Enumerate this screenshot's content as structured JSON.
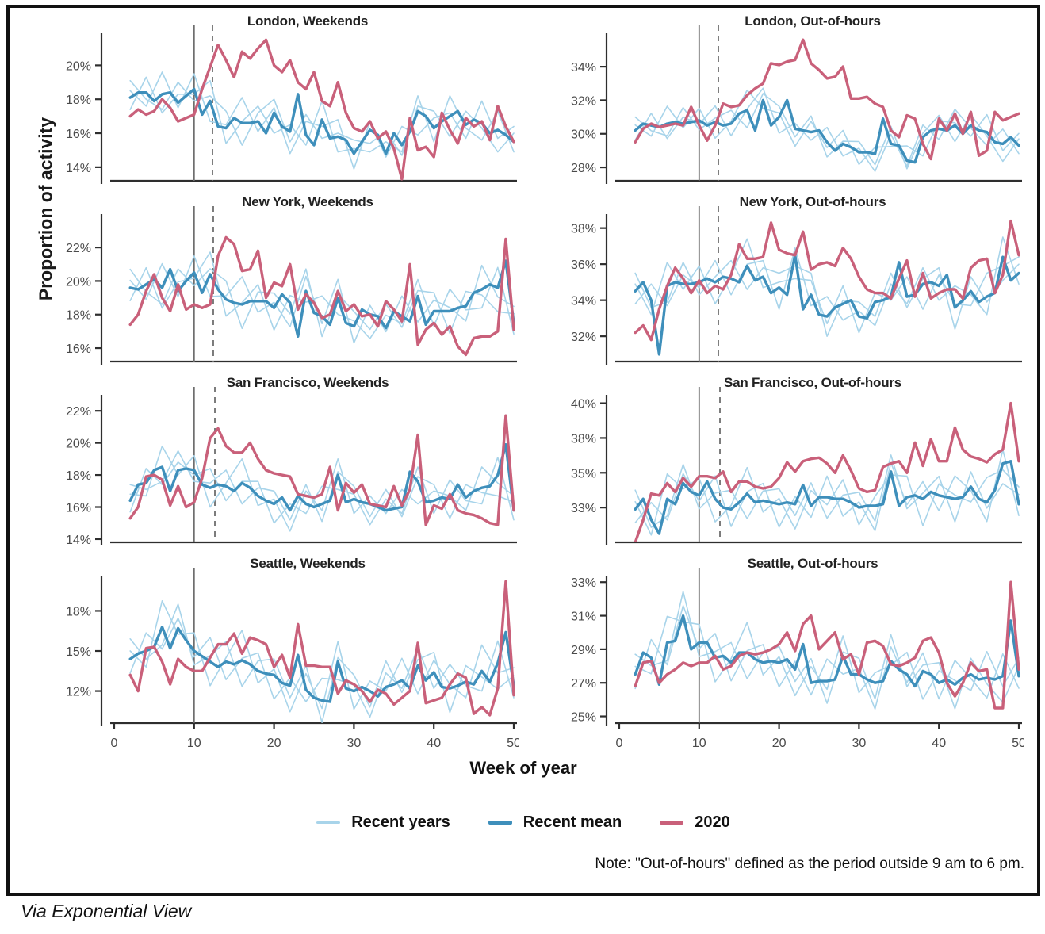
{
  "figure": {
    "y_axis_label": "Proportion of activity",
    "x_axis_label": "Week of year",
    "note": "Note: \"Out-of-hours\" defined as the period outside 9 am to 6 pm.",
    "attribution": "Via Exponential View",
    "legend": [
      {
        "label": "Recent years",
        "color": "#a8d4ea",
        "thickness": 3
      },
      {
        "label": "Recent mean",
        "color": "#3e8fbb",
        "thickness": 5
      },
      {
        "label": "2020",
        "color": "#c9607a",
        "thickness": 5
      }
    ]
  },
  "chart_data": {
    "type": "line",
    "xlabel": "Week of year",
    "ylabel": "Proportion of activity",
    "xlim": [
      0,
      50
    ],
    "xticks": [
      0,
      10,
      20,
      30,
      40,
      50
    ],
    "vline_solid_week": 10,
    "colors": {
      "recent": "#a8d4ea",
      "mean": "#3e8fbb",
      "y2020": "#c9607a",
      "vline": "#6e6e6e"
    },
    "x_weeks": [
      2,
      3,
      4,
      5,
      6,
      7,
      8,
      9,
      10,
      11,
      12,
      13,
      14,
      15,
      16,
      17,
      18,
      19,
      20,
      21,
      22,
      23,
      24,
      25,
      26,
      27,
      28,
      29,
      30,
      31,
      32,
      33,
      34,
      35,
      36,
      37,
      38,
      39,
      40,
      41,
      42,
      43,
      44,
      45,
      46,
      47,
      48,
      49,
      50
    ],
    "x_weeks_even": [
      2,
      4,
      6,
      8,
      10,
      12,
      14,
      16,
      18,
      20,
      22,
      24,
      26,
      28,
      30,
      32,
      34,
      36,
      38,
      40,
      42,
      44,
      46,
      48,
      50
    ],
    "recent_years_offsets": [
      [
        0.4,
        -0.8,
        1.3,
        -0.3,
        0.9,
        -1.2,
        0.2,
        1.5,
        -0.6,
        0.3,
        -1.3,
        0.8,
        -0.4,
        1.0,
        -0.9,
        0.5,
        -0.2,
        1.1,
        -1.4,
        0.6,
        0.2,
        -0.8,
        1.3,
        -0.5,
        0.9
      ],
      [
        -0.7,
        0.9,
        -1.1,
        0.5,
        -0.3,
        1.2,
        -0.9,
        0.1,
        0.9,
        -1.2,
        0.4,
        -0.6,
        1.1,
        -0.9,
        0.3,
        -1.3,
        0.7,
        -0.4,
        0.9,
        -0.8,
        1.2,
        -0.2,
        -1.0,
        1.1,
        -0.6
      ],
      [
        1.0,
        -0.4,
        -0.9,
        1.2,
        -0.7,
        0.3,
        1.0,
        -1.3,
        0.5,
        0.8,
        -0.6,
        1.2,
        -1.1,
        0.2,
        0.8,
        -0.8,
        1.3,
        -0.6,
        0.3,
        1.0,
        -1.2,
        0.8,
        -0.3,
        -1.3,
        0.5
      ]
    ],
    "panels": [
      {
        "id": "london-weekends",
        "title": "London, Weekends",
        "yticks": [
          14,
          16,
          18,
          20
        ],
        "ylim": [
          13.2,
          21.7
        ],
        "vline_dashed_week": 12.3,
        "recent_amp": 1.0,
        "mean": [
          18.1,
          18.4,
          18.4,
          17.9,
          18.3,
          18.4,
          17.8,
          18.2,
          18.6,
          17.1,
          17.9,
          16.4,
          16.3,
          16.9,
          16.6,
          16.6,
          16.7,
          16.0,
          17.2,
          16.4,
          16.1,
          18.3,
          15.9,
          15.3,
          16.8,
          15.7,
          15.8,
          15.6,
          14.8,
          15.5,
          16.2,
          15.9,
          14.8,
          16.0,
          15.3,
          16.1,
          17.3,
          17.0,
          16.3,
          16.7,
          17.0,
          17.3,
          16.5,
          16.8,
          16.6,
          16.0,
          16.2,
          15.9,
          15.5
        ],
        "y2020": [
          17.0,
          17.4,
          17.1,
          17.3,
          18.0,
          17.5,
          16.7,
          16.9,
          17.1,
          18.6,
          19.9,
          21.2,
          20.3,
          19.3,
          20.8,
          20.4,
          21.0,
          21.5,
          20.0,
          19.6,
          20.3,
          19.0,
          18.6,
          19.6,
          17.9,
          17.6,
          19.0,
          17.2,
          16.3,
          16.1,
          16.7,
          15.7,
          16.1,
          15.1,
          13.3,
          16.9,
          15.0,
          15.2,
          14.6,
          17.2,
          16.2,
          15.4,
          16.9,
          16.4,
          16.7,
          15.6,
          17.6,
          16.4,
          15.5
        ]
      },
      {
        "id": "london-out-of-hours",
        "title": "London, Out-of-hours",
        "yticks": [
          28,
          30,
          32,
          34
        ],
        "ylim": [
          27.2,
          35.8
        ],
        "vline_dashed_week": 12.4,
        "recent_amp": 0.8,
        "mean": [
          30.2,
          30.6,
          30.5,
          30.4,
          30.6,
          30.7,
          30.6,
          30.7,
          30.8,
          30.5,
          30.7,
          30.5,
          30.6,
          31.2,
          31.4,
          30.2,
          32.0,
          30.5,
          31.0,
          32.0,
          30.3,
          30.2,
          30.1,
          30.2,
          29.5,
          29.0,
          29.4,
          29.2,
          28.9,
          28.9,
          28.8,
          30.9,
          29.4,
          29.3,
          28.4,
          28.3,
          29.8,
          30.2,
          30.3,
          30.2,
          30.5,
          30.0,
          30.5,
          30.2,
          30.1,
          29.5,
          29.4,
          29.8,
          29.3
        ],
        "y2020": [
          29.5,
          30.3,
          30.6,
          30.4,
          30.5,
          30.6,
          30.5,
          31.6,
          30.5,
          29.6,
          30.5,
          31.8,
          31.6,
          31.7,
          32.3,
          32.7,
          33.0,
          34.2,
          34.1,
          34.3,
          34.4,
          35.6,
          34.2,
          33.8,
          33.3,
          33.4,
          34.0,
          32.1,
          32.1,
          32.2,
          31.8,
          31.6,
          30.2,
          29.8,
          31.1,
          30.9,
          29.4,
          28.5,
          30.9,
          30.2,
          31.2,
          30.0,
          31.3,
          28.7,
          29.0,
          31.3,
          30.8,
          31.0,
          31.2
        ]
      },
      {
        "id": "new-york-weekends",
        "title": "New York, Weekends",
        "yticks": [
          16,
          18,
          20,
          22
        ],
        "ylim": [
          15.2,
          23.8
        ],
        "vline_dashed_week": 12.4,
        "recent_amp": 1.1,
        "mean": [
          19.6,
          19.5,
          19.8,
          20.1,
          19.6,
          20.7,
          19.4,
          20.0,
          20.5,
          19.3,
          20.4,
          19.5,
          18.9,
          18.7,
          18.6,
          18.8,
          18.8,
          18.8,
          18.4,
          19.2,
          18.7,
          16.7,
          19.4,
          18.1,
          17.9,
          17.4,
          19.0,
          17.5,
          17.3,
          18.3,
          18.0,
          17.9,
          17.2,
          18.2,
          17.9,
          17.6,
          19.1,
          17.4,
          18.2,
          18.2,
          18.2,
          18.4,
          18.5,
          19.3,
          19.5,
          19.8,
          19.6,
          21.2,
          17.5
        ],
        "y2020": [
          17.4,
          18.0,
          19.4,
          20.4,
          19.0,
          18.2,
          19.8,
          18.3,
          18.6,
          18.4,
          18.6,
          21.5,
          22.6,
          22.2,
          20.6,
          20.7,
          21.8,
          19.0,
          19.9,
          19.7,
          21.0,
          18.3,
          19.2,
          18.7,
          17.8,
          18.0,
          19.4,
          18.2,
          18.6,
          17.9,
          18.0,
          17.3,
          18.8,
          18.3,
          17.6,
          21.0,
          16.2,
          17.1,
          17.5,
          16.8,
          17.3,
          16.1,
          15.6,
          16.6,
          16.7,
          16.7,
          17.0,
          22.5,
          17.1
        ]
      },
      {
        "id": "new-york-out-of-hours",
        "title": "New York, Out-of-hours",
        "yticks": [
          32,
          34,
          36,
          38
        ],
        "ylim": [
          30.6,
          38.6
        ],
        "vline_dashed_week": 12.4,
        "recent_amp": 1.0,
        "mean": [
          34.5,
          35.0,
          34.0,
          31.0,
          34.8,
          35.0,
          34.9,
          34.9,
          35.0,
          35.2,
          35.0,
          35.3,
          35.2,
          35.0,
          35.9,
          35.1,
          35.3,
          34.4,
          34.7,
          34.3,
          36.5,
          33.5,
          34.3,
          33.2,
          33.1,
          33.6,
          33.8,
          34.0,
          33.1,
          33.0,
          33.9,
          34.0,
          34.2,
          36.1,
          34.2,
          34.3,
          34.9,
          35.0,
          34.8,
          35.4,
          33.6,
          34.0,
          34.5,
          33.9,
          34.2,
          34.4,
          36.4,
          35.1,
          35.5
        ],
        "y2020": [
          32.2,
          32.6,
          31.8,
          33.5,
          34.8,
          35.8,
          35.2,
          34.4,
          35.1,
          34.4,
          34.8,
          34.6,
          35.4,
          37.1,
          36.3,
          36.3,
          36.4,
          38.3,
          36.8,
          36.6,
          36.5,
          37.8,
          35.7,
          36.0,
          36.1,
          35.9,
          36.9,
          36.3,
          35.3,
          34.6,
          34.4,
          34.4,
          34.1,
          35.2,
          36.2,
          34.2,
          35.5,
          34.1,
          34.4,
          34.6,
          34.6,
          34.1,
          35.8,
          36.2,
          36.3,
          34.4,
          35.4,
          38.4,
          36.5
        ]
      },
      {
        "id": "san-francisco-weekends",
        "title": "San Francisco, Weekends",
        "yticks": [
          14,
          16,
          18,
          20,
          22
        ],
        "ylim": [
          13.8,
          22.8
        ],
        "vline_dashed_week": 12.6,
        "recent_amp": 1.0,
        "mean": [
          16.4,
          17.4,
          17.5,
          18.3,
          18.5,
          17.0,
          18.3,
          18.4,
          18.3,
          17.4,
          17.2,
          17.4,
          17.3,
          17.0,
          17.5,
          17.2,
          16.7,
          16.4,
          16.2,
          16.6,
          15.8,
          16.7,
          16.2,
          16.0,
          16.2,
          16.4,
          18.0,
          16.3,
          16.5,
          16.3,
          16.2,
          16.0,
          15.8,
          15.9,
          16.0,
          18.2,
          17.6,
          16.3,
          16.4,
          16.6,
          16.5,
          17.4,
          16.6,
          17.0,
          17.2,
          17.3,
          18.0,
          19.9,
          15.8
        ],
        "y2020": [
          15.3,
          16.0,
          17.9,
          18.0,
          17.7,
          16.1,
          17.3,
          16.0,
          16.3,
          17.8,
          20.3,
          20.9,
          19.8,
          19.4,
          19.4,
          20.0,
          19.0,
          18.3,
          18.1,
          18.0,
          17.9,
          16.8,
          16.7,
          16.6,
          16.8,
          18.5,
          15.8,
          17.5,
          16.9,
          17.4,
          16.2,
          16.1,
          16.0,
          17.3,
          16.1,
          17.1,
          20.5,
          14.9,
          16.1,
          15.9,
          16.8,
          15.8,
          15.6,
          15.5,
          15.3,
          15.0,
          14.9,
          21.7,
          15.8
        ]
      },
      {
        "id": "san-francisco-out-of-hours",
        "title": "San Francisco, Out-of-hours",
        "yticks": [
          33,
          35,
          38,
          40
        ],
        "ylim": [
          31.0,
          40.3
        ],
        "vline_dashed_week": 12.6,
        "recent_amp": 1.1,
        "mean": [
          32.9,
          33.5,
          32.3,
          31.5,
          33.5,
          33.2,
          34.4,
          33.9,
          33.7,
          34.5,
          33.5,
          33.0,
          32.9,
          33.3,
          33.8,
          33.3,
          33.4,
          33.3,
          33.2,
          33.3,
          33.2,
          34.3,
          33.1,
          33.6,
          33.6,
          33.5,
          33.5,
          33.3,
          33.0,
          33.1,
          33.1,
          33.2,
          35.1,
          33.1,
          33.6,
          33.7,
          33.5,
          33.9,
          33.7,
          33.6,
          33.5,
          33.6,
          34.2,
          33.5,
          33.3,
          34.0,
          35.8,
          36.0,
          33.2
        ],
        "y2020": [
          31.0,
          32.3,
          33.8,
          33.7,
          34.4,
          33.9,
          34.7,
          34.2,
          34.8,
          34.8,
          34.7,
          35.1,
          33.9,
          34.5,
          34.5,
          34.2,
          34.1,
          34.2,
          34.7,
          35.9,
          35.1,
          36.0,
          36.2,
          36.3,
          35.8,
          35.0,
          36.5,
          35.2,
          34.1,
          33.9,
          34.0,
          35.5,
          35.8,
          36.0,
          35.0,
          37.6,
          35.6,
          37.9,
          36.0,
          36.0,
          38.6,
          37.0,
          36.4,
          36.2,
          35.9,
          36.6,
          37.0,
          40.0,
          36.0
        ]
      },
      {
        "id": "seattle-weekends",
        "title": "Seattle, Weekends",
        "yticks": [
          12,
          15,
          18
        ],
        "ylim": [
          9.6,
          20.4
        ],
        "vline_dashed_week": null,
        "recent_amp": 1.5,
        "mean": [
          14.4,
          14.8,
          15.0,
          15.3,
          16.8,
          15.2,
          16.7,
          15.8,
          15.0,
          14.6,
          14.2,
          13.8,
          14.2,
          14.0,
          14.3,
          14.0,
          13.5,
          13.3,
          13.2,
          12.6,
          12.4,
          14.7,
          12.1,
          11.5,
          11.3,
          11.2,
          14.2,
          12.2,
          12.0,
          12.3,
          12.0,
          11.6,
          12.3,
          12.5,
          12.8,
          12.2,
          13.9,
          12.8,
          13.4,
          12.3,
          12.2,
          12.4,
          12.7,
          12.5,
          13.5,
          12.7,
          14.1,
          16.4,
          12.4
        ],
        "y2020": [
          13.2,
          12.0,
          15.2,
          15.3,
          14.2,
          12.5,
          14.4,
          13.8,
          13.5,
          13.5,
          14.5,
          15.5,
          15.5,
          16.3,
          14.8,
          16.0,
          15.8,
          15.5,
          13.8,
          14.7,
          13.0,
          17.0,
          13.9,
          13.9,
          13.8,
          13.8,
          11.8,
          12.8,
          12.5,
          12.0,
          11.2,
          12.1,
          11.8,
          11.0,
          11.5,
          12.0,
          15.6,
          11.1,
          11.3,
          11.5,
          12.5,
          13.3,
          13.0,
          10.3,
          10.8,
          10.2,
          12.2,
          20.2,
          11.7
        ]
      },
      {
        "id": "seattle-out-of-hours",
        "title": "Seattle, Out-of-hours",
        "yticks": [
          25,
          27,
          29,
          31,
          33
        ],
        "ylim": [
          24.6,
          33.2
        ],
        "vline_dashed_week": null,
        "recent_amp": 1.2,
        "mean": [
          27.5,
          28.8,
          28.5,
          26.9,
          29.4,
          29.5,
          31.0,
          29.0,
          29.4,
          29.4,
          28.5,
          28.6,
          28.2,
          28.8,
          28.8,
          28.4,
          28.2,
          28.3,
          28.2,
          28.4,
          27.8,
          29.3,
          27.0,
          27.1,
          27.1,
          27.2,
          28.6,
          27.5,
          27.5,
          27.2,
          27.0,
          27.1,
          28.3,
          27.8,
          27.5,
          26.8,
          27.7,
          27.5,
          27.0,
          27.2,
          26.9,
          27.3,
          27.5,
          27.2,
          27.3,
          27.2,
          27.4,
          30.7,
          27.4
        ],
        "y2020": [
          26.8,
          28.2,
          28.3,
          27.0,
          27.5,
          27.8,
          28.2,
          28.0,
          28.2,
          28.2,
          28.6,
          27.8,
          28.0,
          28.6,
          28.8,
          28.7,
          28.8,
          29.0,
          29.3,
          30.0,
          28.9,
          30.5,
          31.0,
          29.0,
          29.5,
          30.0,
          28.4,
          28.7,
          27.5,
          29.4,
          29.5,
          29.2,
          28.1,
          28.0,
          28.2,
          28.5,
          29.5,
          29.7,
          28.8,
          27.0,
          26.2,
          27.0,
          28.2,
          27.7,
          27.8,
          25.5,
          25.5,
          33.0,
          27.8
        ]
      }
    ]
  }
}
